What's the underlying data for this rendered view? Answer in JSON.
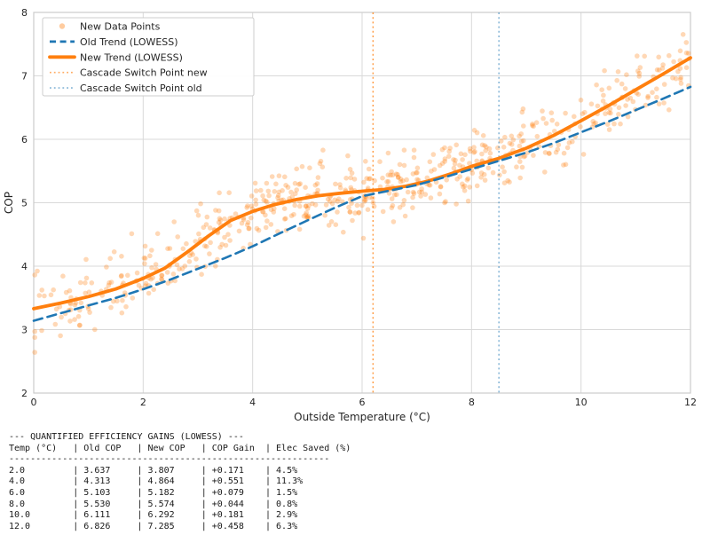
{
  "chart_data": {
    "type": "scatter",
    "title": "",
    "xlabel": "Outside Temperature (°C)",
    "ylabel": "COP",
    "xlim": [
      0,
      12
    ],
    "ylim": [
      2,
      8
    ],
    "x_ticks": [
      0,
      2,
      4,
      6,
      8,
      10,
      12
    ],
    "y_ticks": [
      2,
      3,
      4,
      5,
      6,
      7,
      8
    ],
    "grid": true,
    "legend_position": "upper left",
    "legend": {
      "items": [
        {
          "label": "New Data Points"
        },
        {
          "label": "Old Trend (LOWESS)"
        },
        {
          "label": "New Trend (LOWESS)"
        },
        {
          "label": "Cascade Switch Point new"
        },
        {
          "label": "Cascade Switch Point old"
        }
      ]
    },
    "series": [
      {
        "name": "Old Trend (LOWESS)",
        "type": "line",
        "style": "dashed",
        "color": "#1f77b4",
        "width": 2.6,
        "points": [
          [
            0,
            3.14
          ],
          [
            0.5,
            3.26
          ],
          [
            1,
            3.38
          ],
          [
            1.5,
            3.5
          ],
          [
            2,
            3.637
          ],
          [
            2.5,
            3.79
          ],
          [
            3,
            3.96
          ],
          [
            3.5,
            4.13
          ],
          [
            4,
            4.313
          ],
          [
            4.5,
            4.52
          ],
          [
            5,
            4.72
          ],
          [
            5.5,
            4.92
          ],
          [
            6,
            5.103
          ],
          [
            6.5,
            5.19
          ],
          [
            7,
            5.28
          ],
          [
            7.5,
            5.4
          ],
          [
            8,
            5.53
          ],
          [
            8.5,
            5.66
          ],
          [
            9,
            5.79
          ],
          [
            9.5,
            5.94
          ],
          [
            10,
            6.111
          ],
          [
            10.5,
            6.28
          ],
          [
            11,
            6.46
          ],
          [
            11.5,
            6.64
          ],
          [
            12,
            6.826
          ]
        ]
      },
      {
        "name": "New Trend (LOWESS)",
        "type": "line",
        "style": "solid",
        "color": "#ff7f0e",
        "width": 3.8,
        "points": [
          [
            0,
            3.33
          ],
          [
            0.5,
            3.42
          ],
          [
            1,
            3.52
          ],
          [
            1.5,
            3.64
          ],
          [
            2,
            3.807
          ],
          [
            2.4,
            3.97
          ],
          [
            2.8,
            4.22
          ],
          [
            3.2,
            4.48
          ],
          [
            3.6,
            4.72
          ],
          [
            4,
            4.864
          ],
          [
            4.4,
            4.97
          ],
          [
            4.8,
            5.05
          ],
          [
            5.2,
            5.11
          ],
          [
            5.6,
            5.15
          ],
          [
            6,
            5.182
          ],
          [
            6.4,
            5.21
          ],
          [
            6.8,
            5.26
          ],
          [
            7.2,
            5.34
          ],
          [
            7.6,
            5.45
          ],
          [
            8,
            5.574
          ],
          [
            8.5,
            5.7
          ],
          [
            9,
            5.86
          ],
          [
            9.5,
            6.06
          ],
          [
            10,
            6.292
          ],
          [
            10.5,
            6.53
          ],
          [
            11,
            6.78
          ],
          [
            11.5,
            7.03
          ],
          [
            12,
            7.285
          ]
        ]
      }
    ],
    "vlines": [
      {
        "name": "Cascade Switch Point new",
        "x": 6.2,
        "color": "#ff7f0e",
        "opacity": 0.75
      },
      {
        "name": "Cascade Switch Point old",
        "x": 8.5,
        "color": "#1f77b4",
        "opacity": 0.55
      }
    ],
    "scatter": {
      "name": "New Data Points",
      "color": "#ff7f0e",
      "opacity": 0.3,
      "radius": 2.8,
      "n_points": 640,
      "noise_std": 0.27,
      "seed": 42,
      "x_range": [
        0,
        12
      ],
      "around_series": "New Trend (LOWESS)"
    }
  },
  "table": {
    "title": "--- QUANTIFIED EFFICIENCY GAINS (LOWESS) ---",
    "headers": [
      "Temp (°C)",
      "Old COP",
      "New COP",
      "COP Gain",
      "Elec Saved (%)"
    ],
    "separator": "------------------------------------------------------------",
    "rows": [
      [
        "2.0",
        "3.637",
        "3.807",
        "+0.171",
        "4.5%"
      ],
      [
        "4.0",
        "4.313",
        "4.864",
        "+0.551",
        "11.3%"
      ],
      [
        "6.0",
        "5.103",
        "5.182",
        "+0.079",
        "1.5%"
      ],
      [
        "8.0",
        "5.530",
        "5.574",
        "+0.044",
        "0.8%"
      ],
      [
        "10.0",
        "6.111",
        "6.292",
        "+0.181",
        "2.9%"
      ],
      [
        "12.0",
        "6.826",
        "7.285",
        "+0.458",
        "6.3%"
      ]
    ]
  },
  "colors": {
    "accent_orange": "#ff7f0e",
    "accent_blue": "#1f77b4",
    "grid": "#d9d9d9",
    "text": "#262626",
    "background": "#ffffff"
  }
}
